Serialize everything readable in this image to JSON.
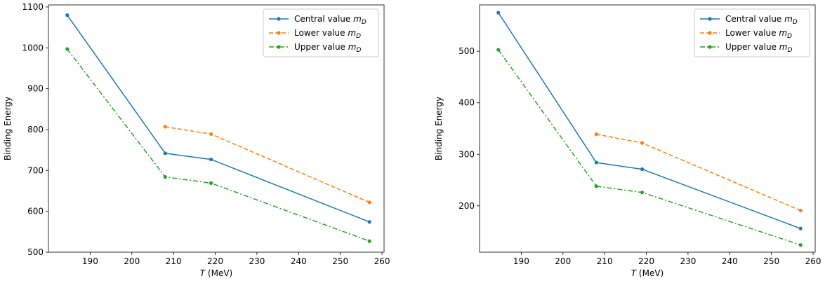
{
  "chart_data": [
    {
      "type": "line",
      "xlabel_var": "T",
      "xlabel_unit": "(MeV)",
      "ylabel": "Binding Energy",
      "xlim": [
        180,
        260.5
      ],
      "ylim": [
        500,
        1105
      ],
      "xticks": [
        190,
        200,
        210,
        220,
        230,
        240,
        250,
        260
      ],
      "yticks": [
        500,
        600,
        700,
        800,
        900,
        1000,
        1100
      ],
      "legend_position": "top-right",
      "series": [
        {
          "name": "Central value",
          "symbol": "D",
          "color": "#1f77b4",
          "dash": "solid",
          "x": [
            184.5,
            208,
            219,
            257
          ],
          "y": [
            1080,
            742,
            727,
            574
          ]
        },
        {
          "name": "Lower value",
          "symbol": "D",
          "color": "#ff7f0e",
          "dash": "dashed",
          "x": [
            208,
            219,
            257
          ],
          "y": [
            807,
            789,
            622
          ]
        },
        {
          "name": "Upper value",
          "symbol": "D",
          "color": "#2ca02c",
          "dash": "dashdot",
          "x": [
            184.5,
            208,
            219,
            257
          ],
          "y": [
            997,
            684,
            669,
            527
          ]
        }
      ]
    },
    {
      "type": "line",
      "xlabel_var": "T",
      "xlabel_unit": "(MeV)",
      "ylabel": "Binding Energy",
      "xlim": [
        180,
        260.5
      ],
      "ylim": [
        110,
        590
      ],
      "xticks": [
        190,
        200,
        210,
        220,
        230,
        240,
        250,
        260
      ],
      "yticks": [
        200,
        300,
        400,
        500
      ],
      "legend_position": "top-right",
      "series": [
        {
          "name": "Central value",
          "symbol": "D",
          "color": "#1f77b4",
          "dash": "solid",
          "x": [
            184.5,
            208,
            219,
            257
          ],
          "y": [
            575,
            284,
            271,
            156
          ]
        },
        {
          "name": "Lower value",
          "symbol": "D",
          "color": "#ff7f0e",
          "dash": "dashed",
          "x": [
            208,
            219,
            257
          ],
          "y": [
            339,
            322,
            191
          ]
        },
        {
          "name": "Upper value",
          "symbol": "D",
          "color": "#2ca02c",
          "dash": "dashdot",
          "x": [
            184.5,
            208,
            219,
            257
          ],
          "y": [
            503,
            238,
            226,
            124
          ]
        }
      ]
    }
  ]
}
